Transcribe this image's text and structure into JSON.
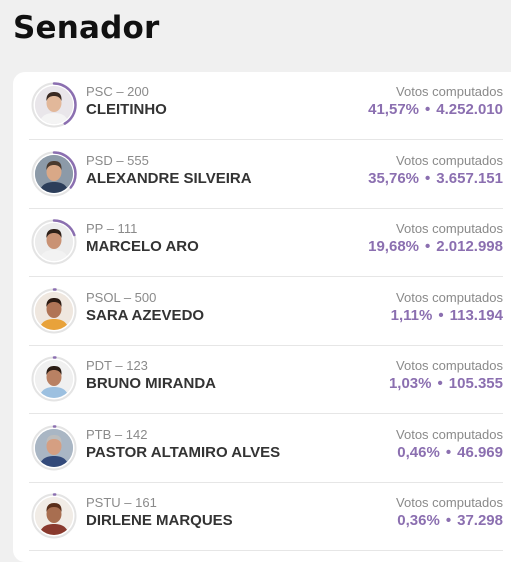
{
  "page": {
    "title": "Senador"
  },
  "colors": {
    "accent": "#8b6fb0",
    "ring_track": "#e4e4e4",
    "text": "#333333",
    "muted": "#8a8a8a"
  },
  "votes_label": "Votos computados",
  "candidates": [
    {
      "party": "PSC – 200",
      "name": "CLEITINHO",
      "percent": "41,57%",
      "separator": "•",
      "votes": "4.252.010",
      "share": 0.4157,
      "skin": "#e2b89a",
      "hair": "#3a2a22",
      "shirt": "#f4f4f4",
      "bg": "#e9e6ea"
    },
    {
      "party": "PSD – 555",
      "name": "ALEXANDRE SILVEIRA",
      "percent": "35,76%",
      "separator": "•",
      "votes": "3.657.151",
      "share": 0.3576,
      "skin": "#d9a887",
      "hair": "#4a3a2e",
      "shirt": "#2c3e5a",
      "bg": "#8c9aa8"
    },
    {
      "party": "PP – 111",
      "name": "MARCELO ARO",
      "percent": "19,68%",
      "separator": "•",
      "votes": "2.012.998",
      "share": 0.1968,
      "skin": "#c99274",
      "hair": "#2e2018",
      "shirt": "#f2f2f2",
      "bg": "#ececec"
    },
    {
      "party": "PSOL – 500",
      "name": "SARA AZEVEDO",
      "percent": "1,11%",
      "separator": "•",
      "votes": "113.194",
      "share": 0.0111,
      "skin": "#b07456",
      "hair": "#2b1a12",
      "shirt": "#e8a23a",
      "bg": "#efe7df"
    },
    {
      "party": "PDT – 123",
      "name": "BRUNO MIRANDA",
      "percent": "1,03%",
      "separator": "•",
      "votes": "105.355",
      "share": 0.0103,
      "skin": "#b98163",
      "hair": "#2a1c14",
      "shirt": "#9cc0e0",
      "bg": "#f0f0f0"
    },
    {
      "party": "PTB – 142",
      "name": "PASTOR ALTAMIRO ALVES",
      "percent": "0,46%",
      "separator": "•",
      "votes": "46.969",
      "share": 0.0046,
      "skin": "#d59f82",
      "hair": "#bdbdbd",
      "shirt": "#334a7a",
      "bg": "#a9b6c4"
    },
    {
      "party": "PSTU – 161",
      "name": "DIRLENE MARQUES",
      "percent": "0,36%",
      "separator": "•",
      "votes": "37.298",
      "share": 0.0036,
      "skin": "#a86e50",
      "hair": "#5a2e1a",
      "shirt": "#8a3a2e",
      "bg": "#f1ece6"
    }
  ]
}
